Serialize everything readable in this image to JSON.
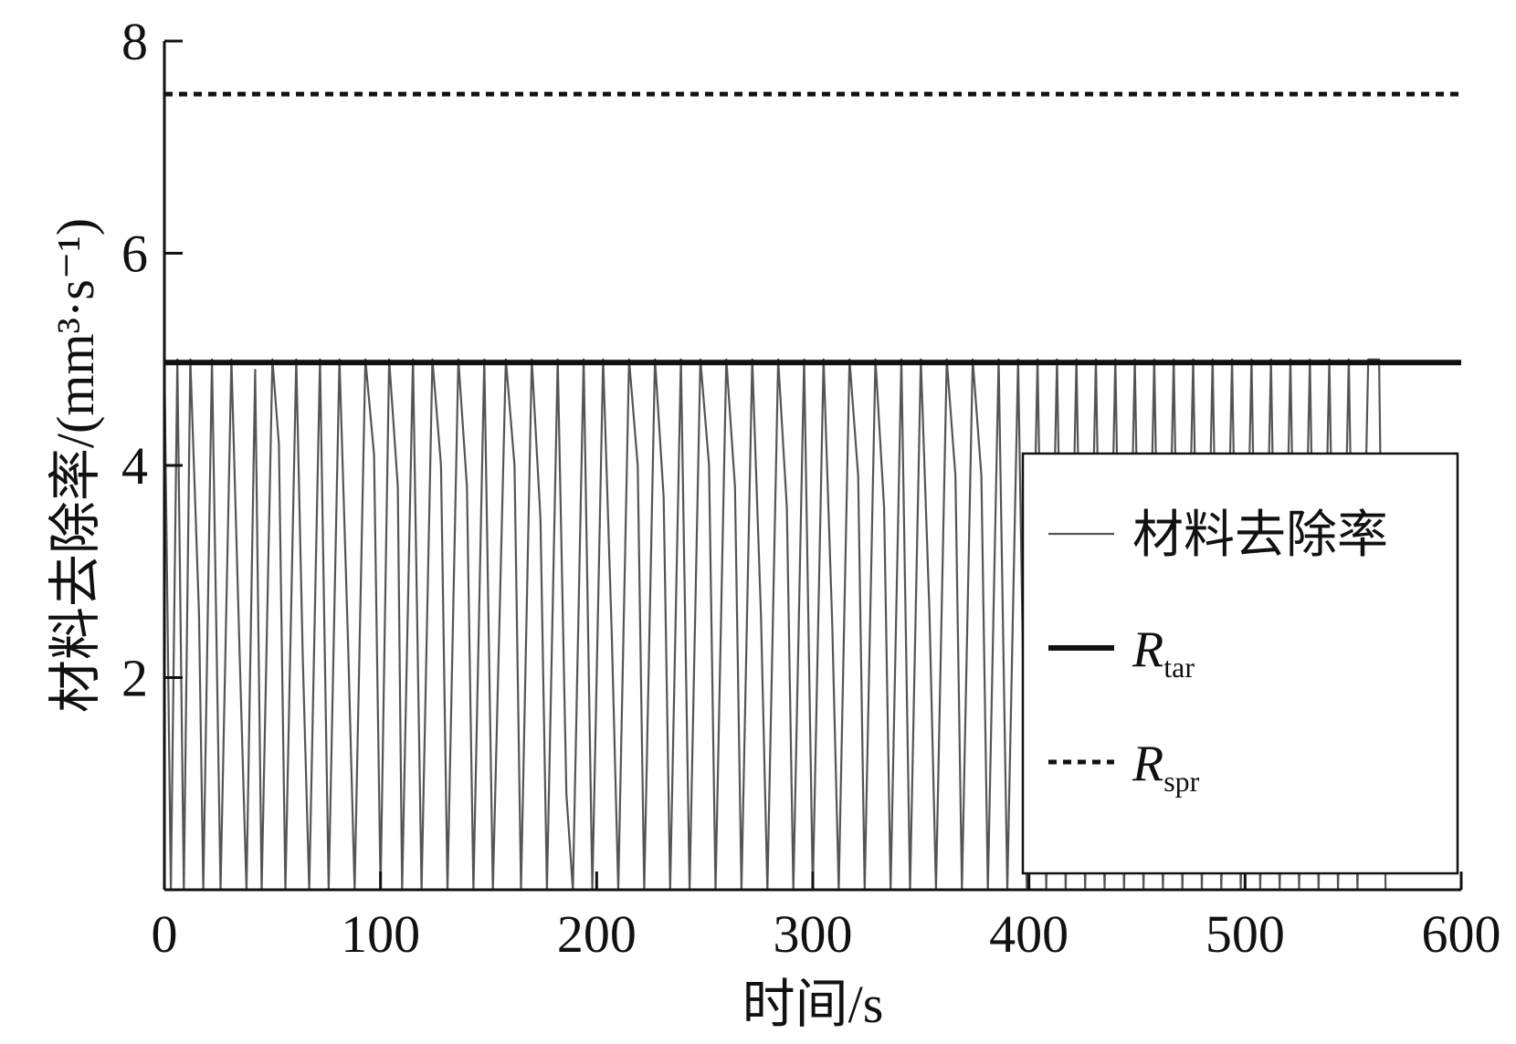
{
  "chart_data": {
    "type": "line",
    "xlabel": "时间/s",
    "ylabel": "材料去除率/(mm³·s⁻¹)",
    "xlim": [
      0,
      600
    ],
    "ylim": [
      0,
      8
    ],
    "x_ticks": [
      0,
      100,
      200,
      300,
      400,
      500,
      600
    ],
    "y_ticks": [
      2,
      4,
      6,
      8
    ],
    "x_tick_labels": [
      "0",
      "100",
      "200",
      "300",
      "400",
      "500",
      "600"
    ],
    "y_tick_labels": [
      "2",
      "4",
      "6",
      "8"
    ],
    "grid": false,
    "legend_position": "lower-right",
    "series": [
      {
        "name": "材料去除率",
        "style": "thin-solid",
        "color": "#555555",
        "pattern": "rapid oscillation between 0 and 5.0 from t=0 to about t=565",
        "points": [
          [
            0,
            5.0
          ],
          [
            3,
            0.0
          ],
          [
            6,
            5.0
          ],
          [
            9,
            0.0
          ],
          [
            12,
            5.0
          ],
          [
            16,
            2.6
          ],
          [
            18,
            0.0
          ],
          [
            22,
            5.0
          ],
          [
            26,
            0.0
          ],
          [
            31,
            5.0
          ],
          [
            35,
            2.1
          ],
          [
            38,
            0.0
          ],
          [
            42,
            4.9
          ],
          [
            45,
            0.0
          ],
          [
            50,
            5.0
          ],
          [
            53,
            4.2
          ],
          [
            56,
            0.0
          ],
          [
            61,
            5.0
          ],
          [
            64,
            2.2
          ],
          [
            67,
            0.0
          ],
          [
            72,
            5.0
          ],
          [
            76,
            0.0
          ],
          [
            81,
            5.0
          ],
          [
            85,
            2.3
          ],
          [
            88,
            0.0
          ],
          [
            93,
            5.0
          ],
          [
            97,
            4.1
          ],
          [
            100,
            0.0
          ],
          [
            104,
            5.0
          ],
          [
            108,
            3.8
          ],
          [
            110,
            0.0
          ],
          [
            115,
            5.0
          ],
          [
            119,
            0.0
          ],
          [
            124,
            5.0
          ],
          [
            128,
            4.0
          ],
          [
            131,
            0.0
          ],
          [
            136,
            5.0
          ],
          [
            140,
            3.8
          ],
          [
            143,
            0.0
          ],
          [
            148,
            5.0
          ],
          [
            152,
            0.0
          ],
          [
            158,
            5.0
          ],
          [
            162,
            4.0
          ],
          [
            165,
            0.0
          ],
          [
            170,
            5.0
          ],
          [
            174,
            3.5
          ],
          [
            177,
            0.0
          ],
          [
            182,
            5.0
          ],
          [
            186,
            0.9
          ],
          [
            189,
            0.0
          ],
          [
            194,
            5.0
          ],
          [
            198,
            0.0
          ],
          [
            203,
            5.0
          ],
          [
            207,
            2.4
          ],
          [
            210,
            0.0
          ],
          [
            215,
            5.0
          ],
          [
            219,
            4.0
          ],
          [
            222,
            0.0
          ],
          [
            227,
            5.0
          ],
          [
            231,
            3.7
          ],
          [
            234,
            0.0
          ],
          [
            239,
            5.0
          ],
          [
            243,
            0.0
          ],
          [
            248,
            5.0
          ],
          [
            252,
            4.0
          ],
          [
            255,
            0.0
          ],
          [
            260,
            5.0
          ],
          [
            264,
            3.8
          ],
          [
            267,
            0.0
          ],
          [
            272,
            5.0
          ],
          [
            276,
            2.6
          ],
          [
            279,
            0.0
          ],
          [
            284,
            5.0
          ],
          [
            288,
            3.6
          ],
          [
            291,
            0.0
          ],
          [
            296,
            5.0
          ],
          [
            300,
            0.0
          ],
          [
            305,
            5.0
          ],
          [
            309,
            2.5
          ],
          [
            312,
            0.0
          ],
          [
            317,
            5.0
          ],
          [
            321,
            3.9
          ],
          [
            324,
            0.0
          ],
          [
            329,
            5.0
          ],
          [
            333,
            3.6
          ],
          [
            336,
            0.0
          ],
          [
            341,
            5.0
          ],
          [
            345,
            0.0
          ],
          [
            350,
            5.0
          ],
          [
            354,
            2.6
          ],
          [
            357,
            0.0
          ],
          [
            362,
            5.0
          ],
          [
            366,
            3.9
          ],
          [
            369,
            0.0
          ],
          [
            374,
            5.0
          ],
          [
            378,
            3.9
          ],
          [
            381,
            0.0
          ],
          [
            386,
            5.0
          ],
          [
            390,
            0.0
          ],
          [
            395,
            5.0
          ],
          [
            399,
            0.0
          ],
          [
            404,
            5.0
          ],
          [
            408,
            0.0
          ],
          [
            413,
            5.0
          ],
          [
            417,
            0.0
          ],
          [
            422,
            5.0
          ],
          [
            426,
            0.0
          ],
          [
            431,
            5.0
          ],
          [
            435,
            0.0
          ],
          [
            440,
            5.0
          ],
          [
            444,
            0.0
          ],
          [
            449,
            5.0
          ],
          [
            453,
            0.0
          ],
          [
            458,
            5.0
          ],
          [
            462,
            0.0
          ],
          [
            467,
            5.0
          ],
          [
            471,
            0.0
          ],
          [
            476,
            5.0
          ],
          [
            480,
            0.0
          ],
          [
            485,
            5.0
          ],
          [
            489,
            0.0
          ],
          [
            494,
            5.0
          ],
          [
            498,
            0.0
          ],
          [
            503,
            5.0
          ],
          [
            507,
            0.0
          ],
          [
            512,
            5.0
          ],
          [
            516,
            0.0
          ],
          [
            521,
            5.0
          ],
          [
            525,
            0.0
          ],
          [
            530,
            5.0
          ],
          [
            534,
            0.0
          ],
          [
            539,
            5.0
          ],
          [
            543,
            0.0
          ],
          [
            548,
            5.0
          ],
          [
            552,
            0.0
          ],
          [
            557,
            5.0
          ],
          [
            562,
            5.0
          ],
          [
            565,
            0.0
          ]
        ]
      },
      {
        "name": "Rtar",
        "label_main": "R",
        "label_sub": "tar",
        "style": "thick-solid",
        "color": "#111111",
        "x": [
          0,
          600
        ],
        "y": [
          4.97,
          4.97
        ]
      },
      {
        "name": "Rspr",
        "label_main": "R",
        "label_sub": "spr",
        "style": "dashed",
        "color": "#111111",
        "x": [
          0,
          600
        ],
        "y": [
          7.5,
          7.5
        ]
      }
    ]
  }
}
